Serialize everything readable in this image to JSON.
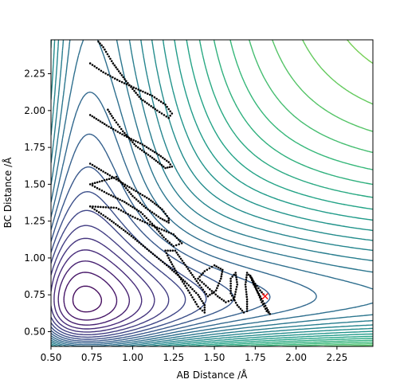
{
  "chart_data": {
    "type": "contour",
    "title": "",
    "xlabel": "AB Distance /Å",
    "ylabel": "BC Distance /Å",
    "xlim": [
      0.5,
      2.47
    ],
    "ylim": [
      0.4,
      2.48
    ],
    "xticks": [
      "0.50",
      "0.75",
      "1.00",
      "1.25",
      "1.50",
      "1.75",
      "2.00",
      "2.25"
    ],
    "yticks": [
      "0.50",
      "0.75",
      "1.00",
      "1.25",
      "1.50",
      "1.75",
      "2.00",
      "2.25"
    ],
    "colormap": [
      "#440154",
      "#482878",
      "#3e4989",
      "#31688e",
      "#26828e",
      "#1f9e89",
      "#35b779",
      "#6ece58",
      "#b5de2b",
      "#fde725"
    ],
    "trajectory_color": "#000000",
    "end_marker": {
      "x": 1.81,
      "y": 0.74,
      "symbol": "x",
      "color": "#ff0000"
    },
    "trajectory": [
      [
        0.74,
        2.32
      ],
      [
        0.82,
        2.26
      ],
      [
        0.92,
        2.2
      ],
      [
        1.02,
        2.15
      ],
      [
        1.12,
        2.1
      ],
      [
        1.2,
        2.04
      ],
      [
        1.24,
        1.98
      ],
      [
        1.22,
        1.95
      ],
      [
        1.15,
        2.0
      ],
      [
        1.05,
        2.08
      ],
      [
        0.96,
        2.2
      ],
      [
        0.88,
        2.32
      ],
      [
        0.82,
        2.43
      ],
      [
        0.78,
        2.48
      ],
      [
        0.74,
        1.97
      ],
      [
        0.84,
        1.9
      ],
      [
        0.95,
        1.83
      ],
      [
        1.06,
        1.77
      ],
      [
        1.16,
        1.7
      ],
      [
        1.22,
        1.65
      ],
      [
        1.24,
        1.62
      ],
      [
        1.2,
        1.61
      ],
      [
        1.12,
        1.68
      ],
      [
        1.02,
        1.76
      ],
      [
        0.94,
        1.86
      ],
      [
        0.88,
        1.95
      ],
      [
        0.84,
        2.02
      ],
      [
        0.74,
        1.64
      ],
      [
        0.86,
        1.56
      ],
      [
        0.98,
        1.48
      ],
      [
        1.1,
        1.4
      ],
      [
        1.18,
        1.33
      ],
      [
        1.22,
        1.27
      ],
      [
        1.22,
        1.24
      ],
      [
        1.17,
        1.27
      ],
      [
        1.08,
        1.34
      ],
      [
        1.0,
        1.42
      ],
      [
        0.94,
        1.5
      ],
      [
        0.9,
        1.55
      ],
      [
        0.74,
        1.5
      ],
      [
        0.84,
        1.44
      ],
      [
        0.95,
        1.38
      ],
      [
        1.05,
        1.31
      ],
      [
        1.13,
        1.22
      ],
      [
        1.19,
        1.14
      ],
      [
        1.25,
        1.08
      ],
      [
        1.3,
        1.1
      ],
      [
        1.25,
        1.16
      ],
      [
        1.12,
        1.22
      ],
      [
        1.0,
        1.28
      ],
      [
        0.9,
        1.34
      ],
      [
        0.74,
        1.35
      ],
      [
        0.86,
        1.26
      ],
      [
        0.98,
        1.16
      ],
      [
        1.1,
        1.05
      ],
      [
        1.22,
        0.94
      ],
      [
        1.32,
        0.84
      ],
      [
        1.4,
        0.75
      ],
      [
        1.44,
        0.68
      ],
      [
        1.44,
        0.63
      ],
      [
        1.4,
        0.67
      ],
      [
        1.34,
        0.78
      ],
      [
        1.27,
        0.9
      ],
      [
        1.22,
        1.0
      ],
      [
        1.2,
        1.05
      ],
      [
        1.26,
        1.05
      ],
      [
        1.33,
        0.94
      ],
      [
        1.4,
        0.83
      ],
      [
        1.46,
        0.74
      ],
      [
        1.51,
        0.78
      ],
      [
        1.54,
        0.86
      ],
      [
        1.55,
        0.92
      ],
      [
        1.5,
        0.95
      ],
      [
        1.44,
        0.91
      ],
      [
        1.4,
        0.86
      ],
      [
        1.46,
        0.8
      ],
      [
        1.52,
        0.74
      ],
      [
        1.57,
        0.7
      ],
      [
        1.62,
        0.72
      ],
      [
        1.64,
        0.82
      ],
      [
        1.63,
        0.9
      ],
      [
        1.6,
        0.86
      ],
      [
        1.6,
        0.76
      ],
      [
        1.64,
        0.68
      ],
      [
        1.68,
        0.63
      ],
      [
        1.7,
        0.64
      ],
      [
        1.7,
        0.72
      ],
      [
        1.69,
        0.82
      ],
      [
        1.7,
        0.9
      ],
      [
        1.73,
        0.86
      ],
      [
        1.76,
        0.78
      ],
      [
        1.79,
        0.7
      ],
      [
        1.82,
        0.64
      ],
      [
        1.84,
        0.62
      ],
      [
        1.82,
        0.66
      ],
      [
        1.78,
        0.74
      ],
      [
        1.74,
        0.82
      ],
      [
        1.72,
        0.88
      ],
      [
        1.74,
        0.84
      ],
      [
        1.78,
        0.78
      ],
      [
        1.81,
        0.74
      ]
    ]
  }
}
